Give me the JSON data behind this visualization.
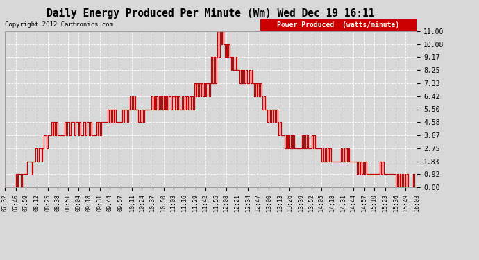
{
  "title": "Daily Energy Produced Per Minute (Wm) Wed Dec 19 16:11",
  "copyright": "Copyright 2012 Cartronics.com",
  "legend_label": "Power Produced  (watts/minute)",
  "legend_bg": "#cc0000",
  "line_color": "#cc0000",
  "bg_color": "#d8d8d8",
  "plot_bg": "#d8d8d8",
  "grid_color": "#ffffff",
  "ylabel_right": [
    "11.00",
    "10.08",
    "9.17",
    "8.25",
    "7.33",
    "6.42",
    "5.50",
    "4.58",
    "3.67",
    "2.75",
    "1.83",
    "0.92",
    "0.00"
  ],
  "ylim": [
    0.0,
    11.0
  ],
  "x_tick_labels": [
    "07:32",
    "07:46",
    "07:59",
    "08:12",
    "08:25",
    "08:38",
    "08:51",
    "09:04",
    "09:18",
    "09:31",
    "09:44",
    "09:57",
    "10:11",
    "10:24",
    "10:37",
    "10:50",
    "11:03",
    "11:16",
    "11:29",
    "11:42",
    "11:55",
    "12:08",
    "12:21",
    "12:34",
    "12:47",
    "13:00",
    "13:13",
    "13:26",
    "13:39",
    "13:52",
    "14:05",
    "14:18",
    "14:31",
    "14:44",
    "14:57",
    "15:10",
    "15:23",
    "15:36",
    "15:49",
    "16:03"
  ],
  "data_y": [
    0.0,
    0.0,
    0.0,
    0.0,
    0.0,
    0.0,
    0.0,
    0.0,
    0.0,
    0.92,
    0.0,
    0.92,
    0.92,
    0.0,
    0.92,
    0.92,
    0.92,
    0.92,
    1.83,
    1.83,
    1.83,
    1.83,
    0.92,
    1.83,
    1.83,
    2.75,
    2.75,
    1.83,
    2.75,
    2.75,
    1.83,
    2.75,
    3.67,
    3.67,
    2.75,
    3.67,
    3.67,
    3.67,
    4.58,
    3.67,
    4.58,
    3.67,
    4.58,
    3.67,
    3.67,
    3.67,
    3.67,
    3.67,
    3.67,
    4.58,
    3.67,
    4.58,
    4.58,
    3.67,
    4.58,
    4.58,
    4.58,
    3.67,
    4.58,
    4.58,
    3.67,
    4.58,
    3.67,
    3.67,
    4.58,
    4.58,
    3.67,
    4.58,
    4.58,
    3.67,
    4.58,
    3.67,
    3.67,
    3.67,
    3.67,
    4.58,
    3.67,
    4.58,
    3.67,
    4.58,
    4.58,
    4.58,
    4.58,
    4.58,
    5.5,
    4.58,
    5.5,
    4.58,
    5.5,
    4.58,
    5.5,
    4.58,
    4.58,
    4.58,
    4.58,
    4.58,
    5.5,
    4.58,
    5.5,
    5.5,
    4.58,
    5.5,
    6.42,
    5.5,
    6.42,
    5.5,
    6.42,
    5.5,
    5.5,
    4.58,
    5.5,
    4.58,
    5.5,
    4.58,
    5.5,
    5.5,
    5.5,
    5.5,
    5.5,
    5.5,
    6.42,
    5.5,
    6.42,
    5.5,
    6.42,
    5.5,
    6.42,
    5.5,
    6.42,
    5.5,
    6.42,
    5.5,
    6.42,
    5.5,
    6.42,
    6.42,
    5.5,
    6.42,
    6.42,
    5.5,
    6.42,
    5.5,
    6.42,
    5.5,
    5.5,
    6.42,
    5.5,
    6.42,
    5.5,
    6.42,
    5.5,
    6.42,
    5.5,
    6.42,
    5.5,
    7.33,
    6.42,
    7.33,
    6.42,
    7.33,
    6.42,
    7.33,
    6.42,
    7.33,
    6.42,
    7.33,
    7.33,
    6.42,
    7.33,
    9.17,
    7.33,
    9.17,
    7.33,
    9.17,
    11.0,
    9.17,
    11.0,
    10.08,
    11.0,
    10.08,
    9.17,
    10.08,
    9.17,
    10.08,
    9.17,
    8.25,
    9.17,
    8.25,
    8.25,
    9.17,
    8.25,
    8.25,
    7.33,
    8.25,
    7.33,
    8.25,
    7.33,
    8.25,
    7.33,
    7.33,
    8.25,
    7.33,
    8.25,
    7.33,
    6.42,
    7.33,
    6.42,
    7.33,
    6.42,
    7.33,
    6.42,
    5.5,
    6.42,
    5.5,
    5.5,
    4.58,
    5.5,
    4.58,
    5.5,
    4.58,
    5.5,
    4.58,
    5.5,
    4.58,
    3.67,
    4.58,
    3.67,
    3.67,
    3.67,
    2.75,
    3.67,
    2.75,
    3.67,
    2.75,
    3.67,
    2.75,
    3.67,
    2.75,
    2.75,
    2.75,
    2.75,
    2.75,
    2.75,
    3.67,
    2.75,
    3.67,
    2.75,
    3.67,
    2.75,
    2.75,
    2.75,
    3.67,
    2.75,
    3.67,
    2.75,
    2.75,
    2.75,
    2.75,
    2.75,
    1.83,
    2.75,
    1.83,
    2.75,
    1.83,
    2.75,
    1.83,
    2.75,
    1.83,
    1.83,
    1.83,
    1.83,
    1.83,
    1.83,
    1.83,
    1.83,
    2.75,
    1.83,
    2.75,
    1.83,
    2.75,
    1.83,
    2.75,
    1.83,
    1.83,
    1.83,
    1.83,
    1.83,
    1.83,
    0.92,
    1.83,
    0.92,
    1.83,
    0.92,
    1.83,
    0.92,
    1.83,
    0.92,
    0.92,
    0.92,
    0.92,
    0.92,
    0.92,
    0.92,
    0.92,
    0.92,
    0.92,
    0.92,
    1.83,
    0.92,
    1.83,
    0.92,
    0.92,
    0.92,
    0.92,
    0.92,
    0.92,
    0.92,
    0.92,
    0.92,
    0.92,
    0.0,
    0.92,
    0.0,
    0.92,
    0.0,
    0.92,
    0.0,
    0.92,
    0.0,
    0.92,
    0.0,
    0.0,
    0.0,
    0.0,
    0.92,
    0.0,
    0.0,
    0.0
  ]
}
